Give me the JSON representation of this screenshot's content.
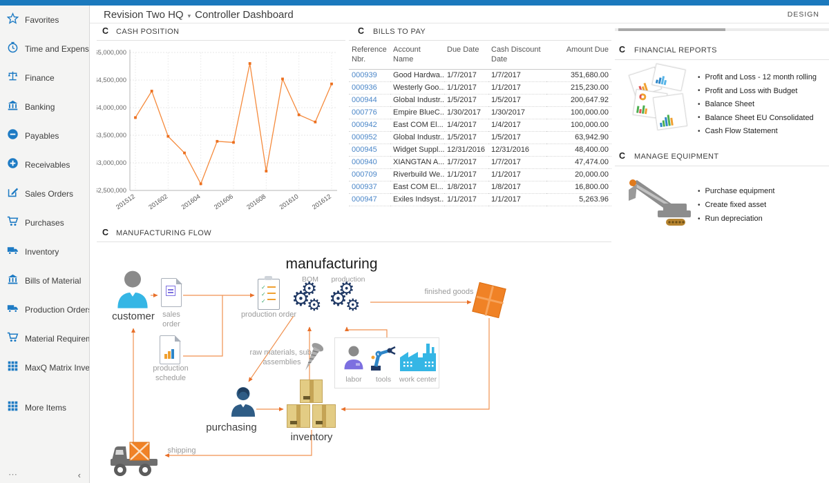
{
  "header": {
    "company": "Revision Two HQ",
    "page_title": "Controller Dashboard",
    "design_label": "DESIGN"
  },
  "sidebar": {
    "items": [
      {
        "label": "Favorites",
        "icon": "star"
      },
      {
        "label": "Time and Expenses",
        "icon": "clock"
      },
      {
        "label": "Finance",
        "icon": "scales"
      },
      {
        "label": "Banking",
        "icon": "bank"
      },
      {
        "label": "Payables",
        "icon": "minus-circle"
      },
      {
        "label": "Receivables",
        "icon": "plus-circle"
      },
      {
        "label": "Sales Orders",
        "icon": "edit"
      },
      {
        "label": "Purchases",
        "icon": "cart"
      },
      {
        "label": "Inventory",
        "icon": "truck"
      },
      {
        "label": "Bills of Material",
        "icon": "bank"
      },
      {
        "label": "Production Orders",
        "icon": "truck"
      },
      {
        "label": "Material Requirem...",
        "icon": "cart"
      },
      {
        "label": "MaxQ Matrix Invent...",
        "icon": "grid"
      },
      {
        "label": "More Items",
        "icon": "grid",
        "gap_before": true
      }
    ],
    "footer": {
      "more_icon": "⋯",
      "collapse_icon": "‹"
    }
  },
  "widgets": {
    "cash_position": {
      "title": "CASH POSITION"
    },
    "bills_to_pay": {
      "title": "BILLS TO PAY",
      "columns": [
        "Reference Nbr.",
        "Account Name",
        "Due Date",
        "Cash Discount Date",
        "Amount Due"
      ],
      "rows": [
        [
          "000939",
          "Good Hardwa...",
          "1/7/2017",
          "1/7/2017",
          "351,680.00"
        ],
        [
          "000936",
          "Westerly Goo...",
          "1/1/2017",
          "1/1/2017",
          "215,230.00"
        ],
        [
          "000944",
          "Global Industr...",
          "1/5/2017",
          "1/5/2017",
          "200,647.92"
        ],
        [
          "000776",
          "Empire BlueC...",
          "1/30/2017",
          "1/30/2017",
          "100,000.00"
        ],
        [
          "000942",
          "East COM El...",
          "1/4/2017",
          "1/4/2017",
          "100,000.00"
        ],
        [
          "000952",
          "Global Industr...",
          "1/5/2017",
          "1/5/2017",
          "63,942.90"
        ],
        [
          "000945",
          "Widget Suppl...",
          "12/31/2016",
          "12/31/2016",
          "48,400.00"
        ],
        [
          "000940",
          "XIANGTAN A...",
          "1/7/2017",
          "1/7/2017",
          "47,474.00"
        ],
        [
          "000709",
          "Riverbuild We...",
          "1/1/2017",
          "1/1/2017",
          "20,000.00"
        ],
        [
          "000937",
          "East COM El...",
          "1/8/2017",
          "1/8/2017",
          "16,800.00"
        ],
        [
          "000947",
          "Exiles Indsyst...",
          "1/1/2017",
          "1/1/2017",
          "5,263.96"
        ]
      ]
    },
    "financial_reports": {
      "title": "FINANCIAL REPORTS",
      "links": [
        "Profit and Loss - 12 month rolling",
        "Profit and Loss with Budget",
        "Balance Sheet",
        "Balance Sheet EU Consolidated",
        "Cash Flow Statement"
      ]
    },
    "manage_equipment": {
      "title": "MANAGE EQUIPMENT",
      "links": [
        "Purchase equipment",
        "Create fixed asset",
        "Run depreciation"
      ]
    },
    "manufacturing_flow": {
      "title": "MANUFACTURING FLOW",
      "labels": {
        "title": "manufacturing",
        "customer": "customer",
        "sales_order": "sales order",
        "production_schedule": "production schedule",
        "production_order": "production order",
        "bom": "BOM",
        "production": "production",
        "finished_goods": "finished goods",
        "raw_materials": "raw materials, sub-assemblies",
        "labor": "labor",
        "tools": "tools",
        "work_center": "work center",
        "purchasing": "purchasing",
        "inventory": "inventory",
        "shipping": "shipping"
      }
    }
  },
  "chart_data": {
    "type": "line",
    "title": "CASH POSITION",
    "x": [
      "201512",
      "201601",
      "201602",
      "201603",
      "201604",
      "201605",
      "201606",
      "201607",
      "201608",
      "201609",
      "201610",
      "201611",
      "201612"
    ],
    "values": [
      63820000,
      64300000,
      63480000,
      63180000,
      62620000,
      63390000,
      63370000,
      64800000,
      62850000,
      64520000,
      63870000,
      63740000,
      64430000
    ],
    "shown_x_ticks": [
      "201512",
      "201602",
      "201604",
      "201606",
      "201608",
      "201610",
      "201612"
    ],
    "ylim": [
      62500000,
      65000000
    ],
    "y_tick_step": 500000,
    "line_color": "#f58a3c",
    "marker_color": "#ec6f1f",
    "grid": true,
    "legend": "none"
  },
  "colors": {
    "topbar": "#1b79bd",
    "sidebar_icon": "#1e7bc4",
    "link_blue": "#4a86c8",
    "diagram_navy": "#1f3864",
    "diagram_cyan": "#35b6e5",
    "diagram_orange": "#f08226"
  }
}
